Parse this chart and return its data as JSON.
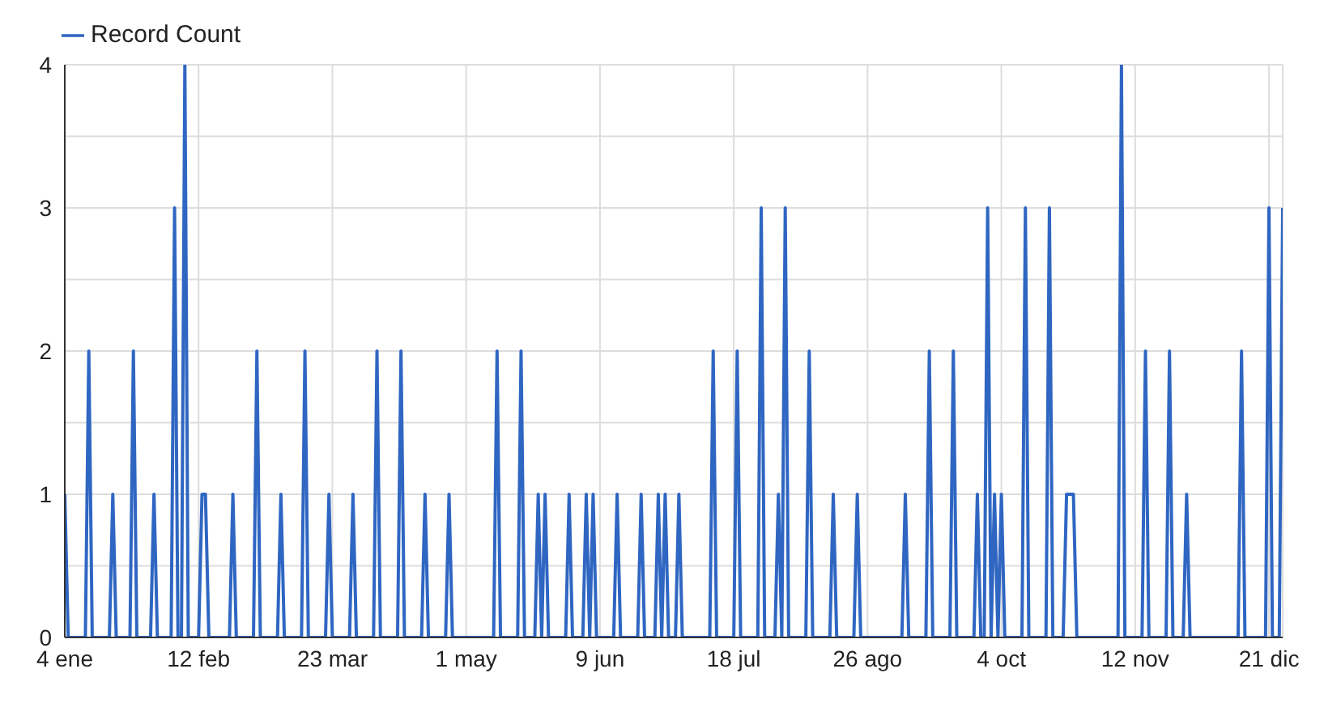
{
  "chart_data": {
    "type": "line",
    "legend": "top left",
    "grid": true,
    "marker": "none",
    "line_style": "solid",
    "x": [
      "--01-04",
      "--01-05",
      "--01-10",
      "--01-11",
      "--01-12",
      "--01-17",
      "--01-18",
      "--01-19",
      "--01-23",
      "--01-24",
      "--01-25",
      "--01-29",
      "--01-30",
      "--01-31",
      "--02-04",
      "--02-05",
      "--02-06",
      "--02-07",
      "--02-08",
      "--02-09",
      "--02-12",
      "--02-13",
      "--02-14",
      "--02-15",
      "--02-21",
      "--02-22",
      "--02-23",
      "--02-28",
      "--03-01",
      "--03-02",
      "--03-07",
      "--03-08",
      "--03-09",
      "--03-14",
      "--03-15",
      "--03-16",
      "--03-21",
      "--03-22",
      "--03-23",
      "--03-28",
      "--03-29",
      "--03-30",
      "--04-04",
      "--04-05",
      "--04-06",
      "--04-11",
      "--04-12",
      "--04-13",
      "--04-18",
      "--04-19",
      "--04-20",
      "--04-25",
      "--04-26",
      "--04-27",
      "--05-09",
      "--05-10",
      "--05-11",
      "--05-16",
      "--05-17",
      "--05-18",
      "--05-21",
      "--05-22",
      "--05-23",
      "--05-24",
      "--05-25",
      "--05-30",
      "--05-31",
      "--06-01",
      "--06-04",
      "--06-05",
      "--06-06",
      "--06-07",
      "--06-08",
      "--06-13",
      "--06-14",
      "--06-15",
      "--06-20",
      "--06-21",
      "--06-22",
      "--06-25",
      "--06-26",
      "--06-27",
      "--06-28",
      "--06-29",
      "--07-01",
      "--07-02",
      "--07-03",
      "--07-11",
      "--07-12",
      "--07-13",
      "--07-18",
      "--07-19",
      "--07-20",
      "--07-25",
      "--07-26",
      "--07-27",
      "--07-30",
      "--07-31",
      "--08-01",
      "--08-02",
      "--08-03",
      "--08-08",
      "--08-09",
      "--08-10",
      "--08-15",
      "--08-16",
      "--08-17",
      "--08-22",
      "--08-23",
      "--08-24",
      "--09-05",
      "--09-06",
      "--09-07",
      "--09-12",
      "--09-13",
      "--09-14",
      "--09-19",
      "--09-20",
      "--09-21",
      "--09-26",
      "--09-27",
      "--09-28",
      "--09-29",
      "--09-30",
      "--10-01",
      "--10-02",
      "--10-03",
      "--10-04",
      "--10-05",
      "--10-10",
      "--10-11",
      "--10-12",
      "--10-17",
      "--10-18",
      "--10-19",
      "--10-22",
      "--10-23",
      "--10-24",
      "--10-25",
      "--10-26",
      "--11-07",
      "--11-08",
      "--11-09",
      "--11-14",
      "--11-15",
      "--11-16",
      "--11-21",
      "--11-22",
      "--11-23",
      "--11-26",
      "--11-27",
      "--11-28",
      "--12-12",
      "--12-13",
      "--12-14",
      "--12-20",
      "--12-21",
      "--12-22",
      "--12-24",
      "--12-25"
    ],
    "series": [
      {
        "name": "Record Count",
        "color": "#2f66c2",
        "values": [
          1,
          0,
          0,
          2,
          0,
          0,
          1,
          0,
          0,
          2,
          0,
          0,
          1,
          0,
          0,
          3,
          0,
          0,
          4,
          0,
          0,
          1,
          1,
          0,
          0,
          1,
          0,
          0,
          2,
          0,
          0,
          1,
          0,
          0,
          2,
          0,
          0,
          1,
          0,
          0,
          1,
          0,
          0,
          2,
          0,
          0,
          2,
          0,
          0,
          1,
          0,
          0,
          1,
          0,
          0,
          2,
          0,
          0,
          2,
          0,
          0,
          1,
          0,
          1,
          0,
          0,
          1,
          0,
          0,
          1,
          0,
          1,
          0,
          0,
          1,
          0,
          0,
          1,
          0,
          0,
          1,
          0,
          1,
          0,
          0,
          1,
          0,
          0,
          2,
          0,
          0,
          2,
          0,
          0,
          3,
          0,
          0,
          1,
          0,
          3,
          0,
          0,
          2,
          0,
          0,
          1,
          0,
          0,
          1,
          0,
          0,
          1,
          0,
          0,
          2,
          0,
          0,
          2,
          0,
          0,
          1,
          0,
          0,
          3,
          0,
          1,
          0,
          1,
          0,
          0,
          3,
          0,
          0,
          3,
          0,
          0,
          1,
          1,
          1,
          0,
          0,
          4,
          0,
          0,
          2,
          0,
          0,
          2,
          0,
          0,
          1,
          0,
          0,
          2,
          0,
          0,
          3,
          0,
          0,
          3
        ]
      }
    ],
    "xlim": [
      "--01-04",
      "--12-25"
    ],
    "xticks": [
      {
        "value": "--01-04",
        "label": "4 ene"
      },
      {
        "value": "--02-12",
        "label": "12 feb"
      },
      {
        "value": "--03-23",
        "label": "23 mar"
      },
      {
        "value": "--05-01",
        "label": "1 may"
      },
      {
        "value": "--06-09",
        "label": "9 jun"
      },
      {
        "value": "--07-18",
        "label": "18 jul"
      },
      {
        "value": "--08-26",
        "label": "26 ago"
      },
      {
        "value": "--10-04",
        "label": "4 oct"
      },
      {
        "value": "--11-12",
        "label": "12 nov"
      },
      {
        "value": "--12-21",
        "label": "21 dic"
      }
    ],
    "ylim": [
      0,
      4
    ],
    "yticks": [
      0,
      {
        "value": 0.5,
        "label": null
      },
      1,
      {
        "value": 1.5,
        "label": null
      },
      2,
      {
        "value": 2.5,
        "label": null
      },
      3,
      {
        "value": 3.5,
        "label": null
      },
      4
    ]
  }
}
